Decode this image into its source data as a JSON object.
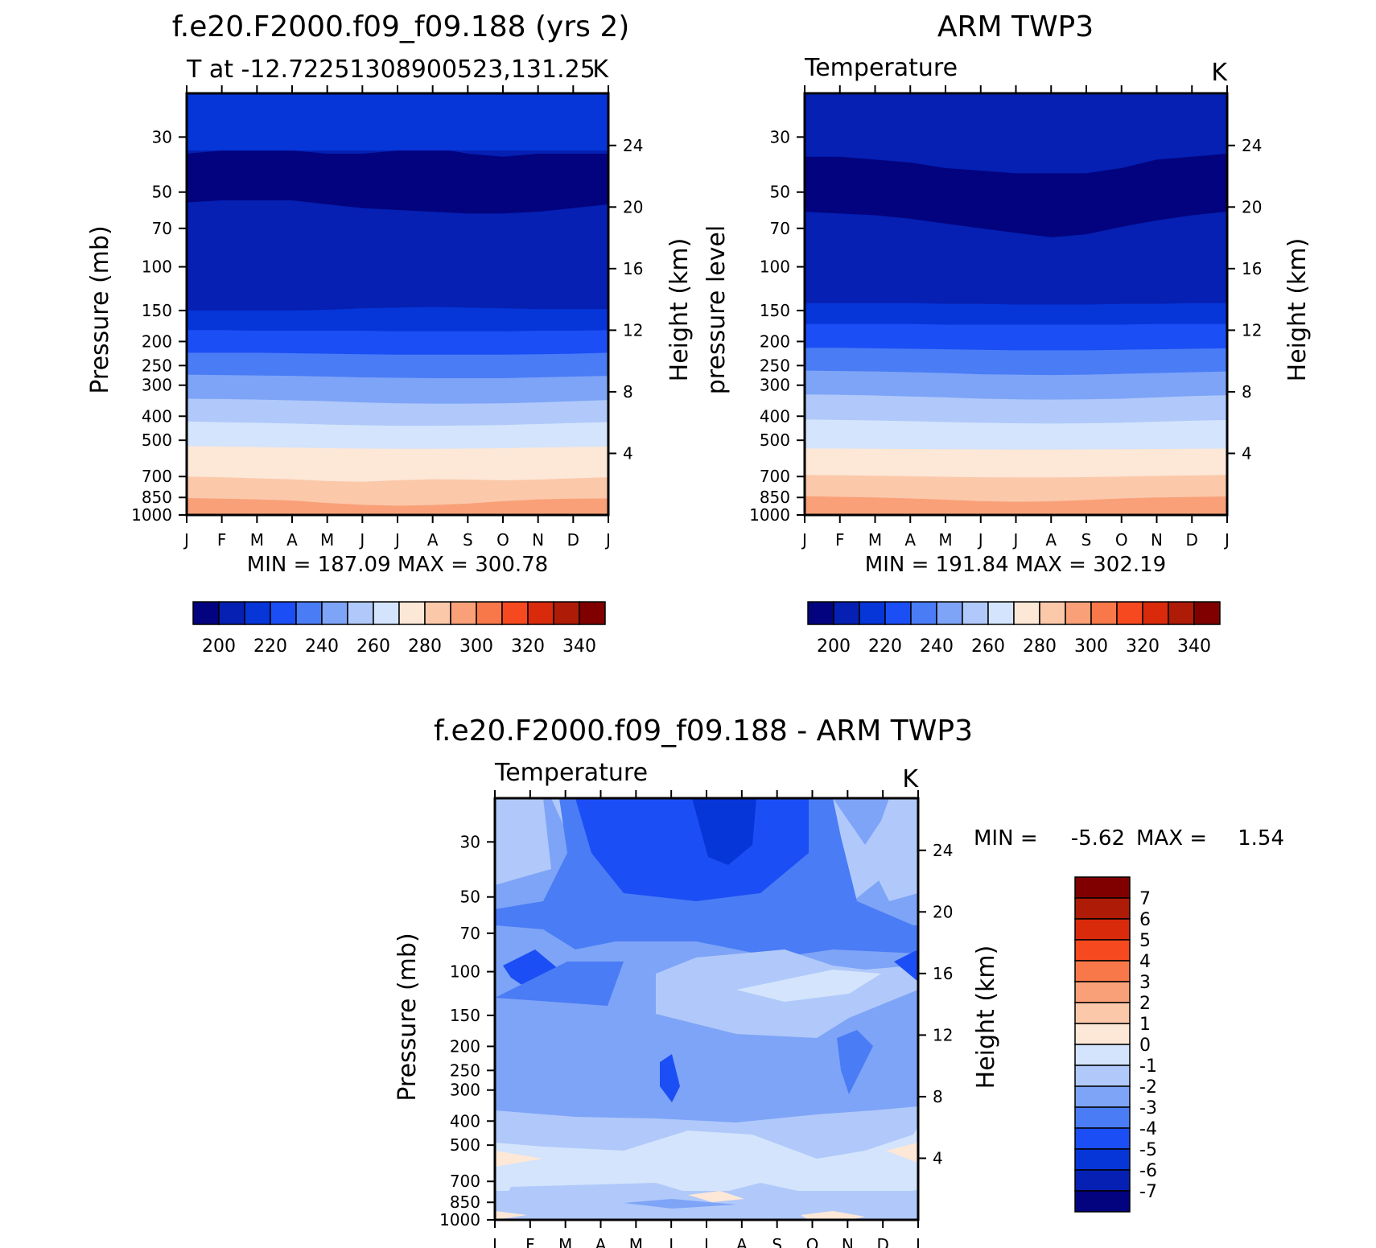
{
  "figure_titles": {
    "top_left": "f.e20.F2000.f09_f09.188 (yrs 2)",
    "top_right": "ARM TWP3",
    "bottom": "f.e20.F2000.f09_f09.188 - ARM TWP3"
  },
  "months": [
    "J",
    "F",
    "M",
    "A",
    "M",
    "J",
    "J",
    "A",
    "S",
    "O",
    "N",
    "D",
    "J"
  ],
  "pressure_ticks": [
    "30",
    "50",
    "70",
    "100",
    "150",
    "200",
    "250",
    "300",
    "400",
    "500",
    "700",
    "850",
    "1000"
  ],
  "pressure_values": [
    30,
    50,
    70,
    100,
    150,
    200,
    250,
    300,
    400,
    500,
    700,
    850,
    1000
  ],
  "height_ticks": [
    "4",
    "8",
    "12",
    "16",
    "20",
    "24"
  ],
  "height_values": [
    4,
    8,
    12,
    16,
    20,
    24
  ],
  "temp_colors": [
    "#03037f",
    "#0520b2",
    "#0635d8",
    "#1c4ef5",
    "#4a7cf5",
    "#7ea4f7",
    "#b0c9fa",
    "#d3e4fc",
    "#fde7d6",
    "#fbc8aa",
    "#f9a078",
    "#f9784a",
    "#f7491f",
    "#d92a0c",
    "#ae1b06",
    "#800000"
  ],
  "diff_colors": [
    "#03037f",
    "#0520b2",
    "#0635d8",
    "#1c4ef5",
    "#4a7cf5",
    "#7ea4f7",
    "#b0c9fa",
    "#d3e4fc",
    "#fde7d6",
    "#fbc8aa",
    "#f9a078",
    "#f9784a",
    "#f7491f",
    "#d92a0c",
    "#ae1b06",
    "#800000"
  ],
  "chart_data": [
    {
      "type": "heatmap",
      "panel": "model",
      "title": "f.e20.F2000.f09_f09.188 (yrs 2)",
      "subtitle_left": "T at -12.72251308900523,131.25",
      "subtitle_right": "K",
      "ylabel": "Pressure (mb)",
      "y2label": "Height (km)",
      "min_max_text": "MIN = 187.09 MAX = 300.78",
      "min": 187.09,
      "max": 300.78,
      "colorbar_labels": [
        "200",
        "220",
        "240",
        "260",
        "280",
        "300",
        "320",
        "340"
      ],
      "contour_levels": [
        190,
        200,
        210,
        220,
        230,
        240,
        250,
        260,
        270,
        280,
        290,
        300,
        310,
        320,
        330
      ],
      "bands": [
        {
          "level": 200,
          "below_pressure": [
            150,
            150,
            150,
            150,
            149,
            147,
            146,
            145,
            146,
            147,
            148,
            148,
            148
          ]
        },
        {
          "level": 210,
          "below_pressure": [
            180,
            180,
            181,
            181,
            181,
            181,
            182,
            182,
            182,
            182,
            181,
            181,
            180
          ]
        },
        {
          "level": 220,
          "below_pressure": [
            222,
            222,
            222,
            223,
            224,
            225,
            226,
            226,
            226,
            226,
            225,
            224,
            222
          ]
        },
        {
          "level": 230,
          "below_pressure": [
            272,
            273,
            274,
            275,
            277,
            279,
            280,
            281,
            281,
            281,
            279,
            277,
            275
          ]
        },
        {
          "level": 240,
          "below_pressure": [
            340,
            341,
            343,
            345,
            348,
            352,
            355,
            356,
            356,
            355,
            352,
            348,
            344
          ]
        },
        {
          "level": 250,
          "below_pressure": [
            420,
            423,
            425,
            428,
            432,
            435,
            437,
            437,
            436,
            434,
            430,
            426,
            422
          ]
        },
        {
          "level": 260,
          "below_pressure": [
            528,
            530,
            532,
            535,
            538,
            540,
            541,
            541,
            540,
            538,
            535,
            532,
            530
          ]
        },
        {
          "level": 270,
          "below_pressure": [
            700,
            705,
            712,
            718,
            730,
            735,
            725,
            718,
            720,
            725,
            720,
            712,
            705
          ]
        },
        {
          "level": 280,
          "below_pressure": [
            855,
            860,
            865,
            875,
            895,
            910,
            918,
            912,
            900,
            880,
            865,
            860,
            858
          ]
        },
        {
          "level": 290,
          "below_pressure": [
            992,
            992,
            992,
            993,
            996,
            998,
            999,
            999,
            998,
            996,
            994,
            993,
            992
          ]
        }
      ],
      "upper_bands": [
        {
          "level": 190,
          "below_pressure": [
            35,
            34,
            34,
            34,
            35,
            35,
            34,
            33,
            35,
            36,
            35,
            35,
            35
          ]
        },
        {
          "level": 200,
          "below_pressure": [
            55,
            54,
            54,
            54,
            56,
            58,
            59,
            60,
            61,
            61,
            60,
            58,
            56
          ]
        }
      ]
    },
    {
      "type": "heatmap",
      "panel": "observation",
      "title": "ARM TWP3",
      "subtitle_left": "Temperature",
      "subtitle_right": "K",
      "ylabel": "pressure level",
      "y2label": "Height (km)",
      "min_max_text": "MIN = 191.84 MAX = 302.19",
      "min": 191.84,
      "max": 302.19,
      "colorbar_labels": [
        "200",
        "220",
        "240",
        "260",
        "280",
        "300",
        "320",
        "340"
      ],
      "contour_levels": [
        190,
        200,
        210,
        220,
        230,
        240,
        250,
        260,
        270,
        280,
        290,
        300,
        310,
        320,
        330
      ]
    },
    {
      "type": "heatmap",
      "panel": "difference",
      "title": "f.e20.F2000.f09_f09.188 - ARM TWP3",
      "subtitle_left": "Temperature",
      "subtitle_right": "K",
      "ylabel": "Pressure (mb)",
      "y2label": "Height (km)",
      "min_label": "MIN =",
      "min_value": "-5.62",
      "max_label": "MAX =",
      "max_value": "1.54",
      "min": -5.62,
      "max": 1.54,
      "colorbar_labels": [
        "7",
        "6",
        "5",
        "4",
        "3",
        "2",
        "1",
        "0",
        "-1",
        "-2",
        "-3",
        "-4",
        "-5",
        "-6",
        "-7"
      ],
      "contour_levels": [
        -7,
        -6,
        -5,
        -4,
        -3,
        -2,
        -1,
        0,
        1,
        2,
        3,
        4,
        5,
        6,
        7
      ]
    }
  ]
}
